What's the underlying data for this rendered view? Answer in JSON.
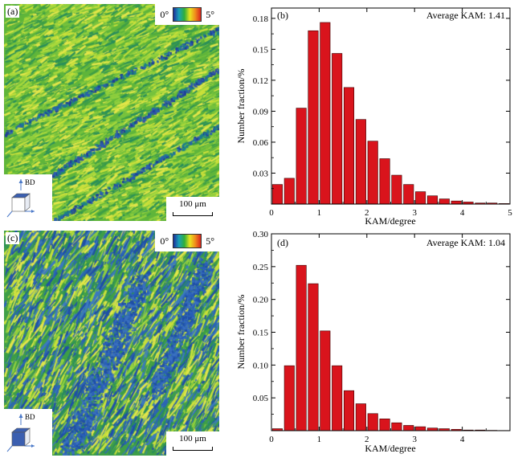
{
  "maps": [
    {
      "panel_label": "(a)",
      "colorbar": {
        "min_label": "0°",
        "max_label": "5°",
        "colors": [
          "#1c2f99",
          "#1aa0b8",
          "#2fae3a",
          "#e9e41e",
          "#f08a1c",
          "#d8241c"
        ]
      },
      "axis_label": "BD",
      "scale_bar": "100 μm"
    },
    {
      "panel_label": "(c)",
      "colorbar": {
        "min_label": "0°",
        "max_label": "5°",
        "colors": [
          "#1c2f99",
          "#1aa0b8",
          "#2fae3a",
          "#e9e41e",
          "#f08a1c",
          "#d8241c"
        ]
      },
      "axis_label": "BD",
      "scale_bar": "100 μm"
    }
  ],
  "chart_data": [
    {
      "type": "bar",
      "panel_label": "(b)",
      "annotation": "Average KAM: 1.41",
      "xlabel": "KAM/degree",
      "ylabel": "Number fraction/%",
      "xlim": [
        0,
        5
      ],
      "ylim": [
        0,
        0.19
      ],
      "bin_width": 0.25,
      "xticks": [
        0,
        1,
        2,
        3,
        4,
        5
      ],
      "xtick_labels": [
        "0",
        "1",
        "2",
        "3",
        "4",
        "5"
      ],
      "yticks": [
        0.03,
        0.06,
        0.09,
        0.12,
        0.15,
        0.18
      ],
      "ytick_labels": [
        "0.03",
        "0.06",
        "0.09",
        "0.12",
        "0.15",
        "0.18"
      ],
      "bar_color": "#d9141c",
      "x": [
        0.125,
        0.375,
        0.625,
        0.875,
        1.125,
        1.375,
        1.625,
        1.875,
        2.125,
        2.375,
        2.625,
        2.875,
        3.125,
        3.375,
        3.625,
        3.875,
        4.125,
        4.375,
        4.625,
        4.875
      ],
      "values": [
        0.019,
        0.025,
        0.093,
        0.168,
        0.176,
        0.146,
        0.113,
        0.082,
        0.061,
        0.044,
        0.028,
        0.019,
        0.012,
        0.008,
        0.005,
        0.003,
        0.002,
        0.001,
        0.001,
        0.0005
      ]
    },
    {
      "type": "bar",
      "panel_label": "(d)",
      "annotation": "Average KAM: 1.04",
      "xlabel": "KAM/degree",
      "ylabel": "Number fraction/%",
      "xlim": [
        0,
        5
      ],
      "ylim": [
        0,
        0.3
      ],
      "bin_width": 0.25,
      "xticks": [
        0,
        1,
        2,
        3,
        4
      ],
      "xtick_labels": [
        "0",
        "1",
        "2",
        "3",
        "4"
      ],
      "yticks": [
        0.05,
        0.1,
        0.15,
        0.2,
        0.25,
        0.3
      ],
      "ytick_labels": [
        "0.05",
        "0.10",
        "0.15",
        "0.20",
        "0.25",
        "0.30"
      ],
      "bar_color": "#d9141c",
      "x": [
        0.125,
        0.375,
        0.625,
        0.875,
        1.125,
        1.375,
        1.625,
        1.875,
        2.125,
        2.375,
        2.625,
        2.875,
        3.125,
        3.375,
        3.625,
        3.875,
        4.125,
        4.375,
        4.625,
        4.875
      ],
      "values": [
        0.003,
        0.099,
        0.252,
        0.224,
        0.152,
        0.099,
        0.061,
        0.041,
        0.026,
        0.018,
        0.012,
        0.008,
        0.006,
        0.004,
        0.003,
        0.002,
        0.001,
        0.001,
        0.0005,
        0.0003
      ]
    }
  ]
}
